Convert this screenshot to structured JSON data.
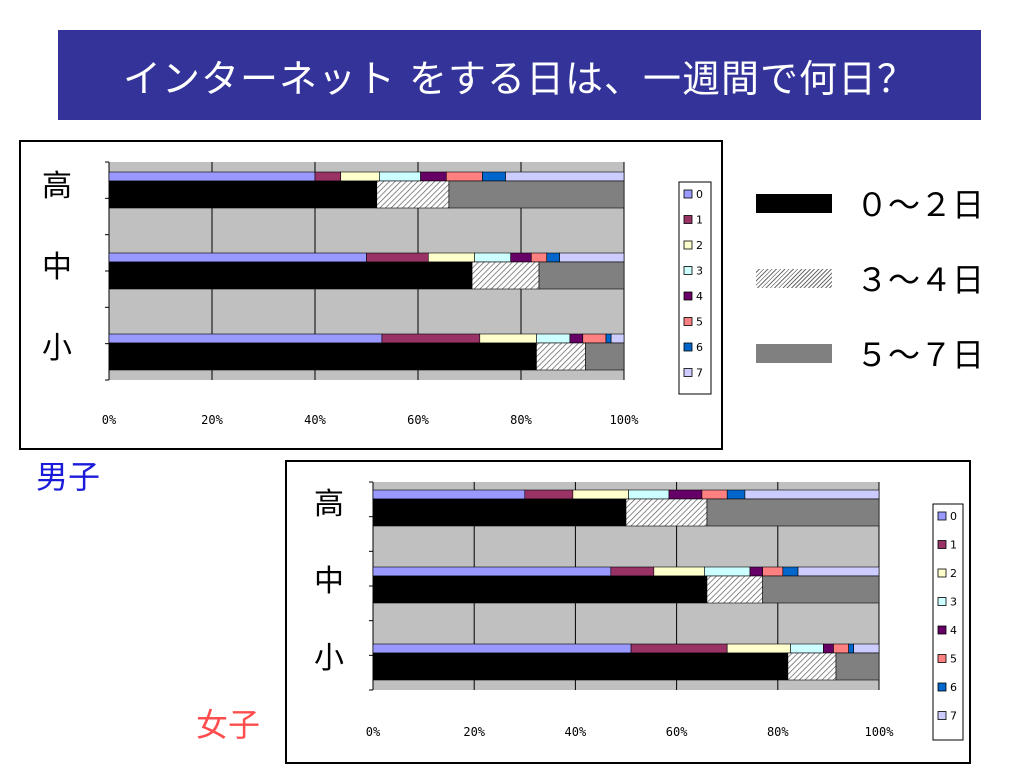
{
  "title": "インターネット をする日は、一週間で何日？",
  "colors": {
    "title_bg": "#333399",
    "boys_label": "#1a1adb",
    "girls_label": "#ff4d4d",
    "plot_bg": "#c0c0c0",
    "days": [
      "#9999ff",
      "#993366",
      "#ffffcc",
      "#ccffff",
      "#660066",
      "#ff8080",
      "#0066cc",
      "#ccccff"
    ],
    "summary": [
      "#000000",
      "hatch",
      "#808080"
    ]
  },
  "summary_legend": [
    {
      "label": "０～２日",
      "style": "solid-black"
    },
    {
      "label": "３～４日",
      "style": "hatched"
    },
    {
      "label": "５～７日",
      "style": "solid-gray"
    }
  ],
  "chart_data": [
    {
      "type": "stacked-bar-horizontal",
      "label": "男子",
      "categories": [
        "高",
        "中",
        "小"
      ],
      "xlim": [
        0,
        100
      ],
      "xticks": [
        "0%",
        "20%",
        "40%",
        "60%",
        "80%",
        "100%"
      ],
      "grid": true,
      "legend_position": "right",
      "day_legend": [
        "0",
        "1",
        "2",
        "3",
        "4",
        "5",
        "6",
        "7"
      ],
      "day_series": [
        {
          "category": "高",
          "values": [
            40,
            5,
            7.5,
            8,
            5,
            7,
            4.5,
            23
          ]
        },
        {
          "category": "中",
          "values": [
            50,
            12,
            9,
            7,
            4,
            3,
            2.5,
            12.5
          ]
        },
        {
          "category": "小",
          "values": [
            53,
            19,
            11,
            6.5,
            2.5,
            4.5,
            1,
            2.5
          ]
        }
      ],
      "summary_series": [
        {
          "category": "高",
          "values": [
            52,
            14,
            34
          ]
        },
        {
          "category": "中",
          "values": [
            70.5,
            13,
            16.5
          ]
        },
        {
          "category": "小",
          "values": [
            83,
            9.5,
            7.5
          ]
        }
      ]
    },
    {
      "type": "stacked-bar-horizontal",
      "label": "女子",
      "categories": [
        "高",
        "中",
        "小"
      ],
      "xlim": [
        0,
        100
      ],
      "xticks": [
        "0%",
        "20%",
        "40%",
        "60%",
        "80%",
        "100%"
      ],
      "grid": true,
      "legend_position": "right",
      "day_legend": [
        "0",
        "1",
        "2",
        "3",
        "4",
        "5",
        "6",
        "7"
      ],
      "day_series": [
        {
          "category": "高",
          "values": [
            30,
            9.5,
            11,
            8,
            6.5,
            5,
            3.5,
            26.5
          ]
        },
        {
          "category": "中",
          "values": [
            47,
            8.5,
            10,
            9,
            2.5,
            4,
            3,
            16
          ]
        },
        {
          "category": "小",
          "values": [
            51,
            19,
            12.5,
            6.5,
            2,
            3,
            1,
            5
          ]
        }
      ],
      "summary_series": [
        {
          "category": "高",
          "values": [
            50,
            16,
            34
          ]
        },
        {
          "category": "中",
          "values": [
            66,
            11,
            23
          ]
        },
        {
          "category": "小",
          "values": [
            82,
            9.5,
            8.5
          ]
        }
      ]
    }
  ]
}
